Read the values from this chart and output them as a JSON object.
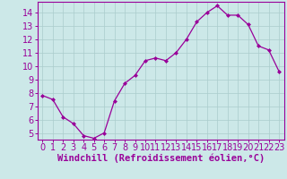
{
  "x": [
    0,
    1,
    2,
    3,
    4,
    5,
    6,
    7,
    8,
    9,
    10,
    11,
    12,
    13,
    14,
    15,
    16,
    17,
    18,
    19,
    20,
    21,
    22,
    23
  ],
  "y": [
    7.8,
    7.5,
    6.2,
    5.7,
    4.8,
    4.6,
    5.0,
    7.4,
    8.7,
    9.3,
    10.4,
    10.6,
    10.4,
    11.0,
    12.0,
    13.3,
    14.0,
    14.5,
    13.8,
    13.8,
    13.1,
    11.5,
    11.2,
    9.6
  ],
  "line_color": "#990099",
  "marker": "D",
  "marker_size": 2.0,
  "bg_color": "#cce8e8",
  "grid_color": "#aacccc",
  "xlabel": "Windchill (Refroidissement éolien,°C)",
  "xlim": [
    -0.5,
    23.5
  ],
  "ylim": [
    4.5,
    14.8
  ],
  "yticks": [
    5,
    6,
    7,
    8,
    9,
    10,
    11,
    12,
    13,
    14
  ],
  "xticks": [
    0,
    1,
    2,
    3,
    4,
    5,
    6,
    7,
    8,
    9,
    10,
    11,
    12,
    13,
    14,
    15,
    16,
    17,
    18,
    19,
    20,
    21,
    22,
    23
  ],
  "tick_color": "#990099",
  "label_color": "#990099",
  "axis_color": "#990099",
  "font_size": 7.0
}
